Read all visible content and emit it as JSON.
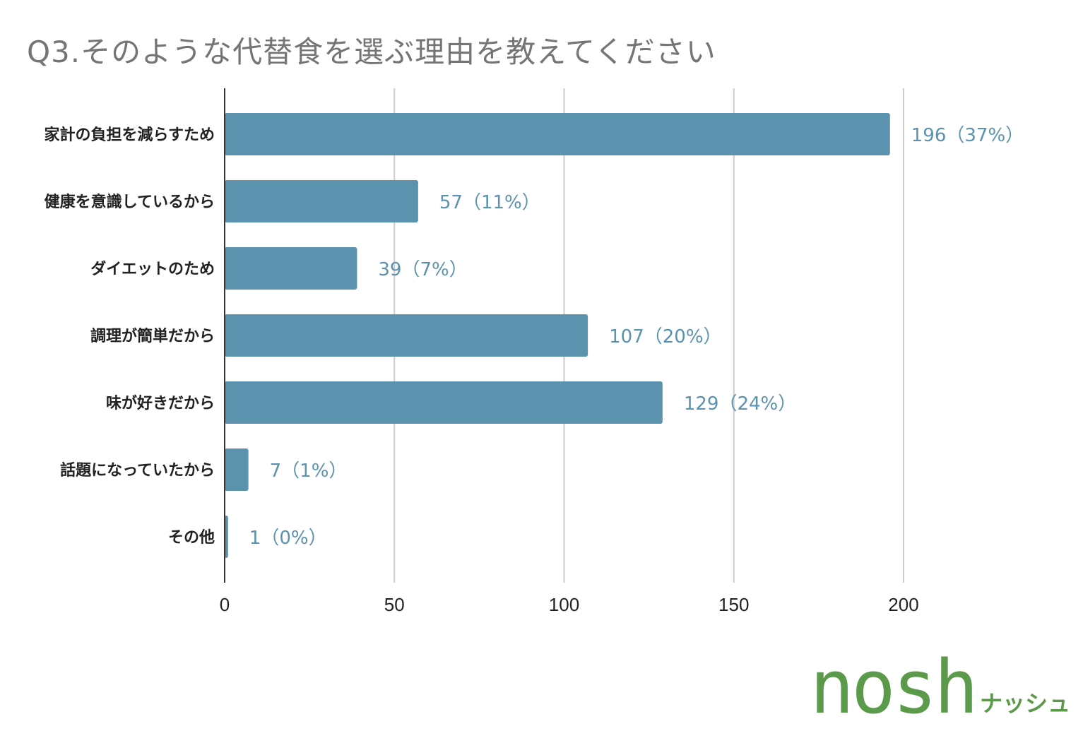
{
  "chart_data": {
    "type": "bar",
    "orientation": "horizontal",
    "title": "Q3.そのような代替食を選ぶ理由を教えてください",
    "categories": [
      "家計の負担を減らすため",
      "健康を意識しているから",
      "ダイエットのため",
      "調理が簡単だから",
      "味が好きだから",
      "話題になっていたから",
      "その他"
    ],
    "values": [
      196,
      57,
      39,
      107,
      129,
      7,
      1
    ],
    "data_labels": [
      "196（37%）",
      "57（11%）",
      "39（7%）",
      "107（20%）",
      "129（24%）",
      "7（1%）",
      "1（0%）"
    ],
    "xlim": [
      0,
      200
    ],
    "xticks": [
      "0",
      "50",
      "100",
      "150",
      "200"
    ],
    "grid": true,
    "bar_color": "#5b92ae",
    "label_color": "#5b92ae"
  },
  "logo": {
    "main": "nosh",
    "sub": "ナッシュ",
    "color": "#5a9a4a"
  }
}
